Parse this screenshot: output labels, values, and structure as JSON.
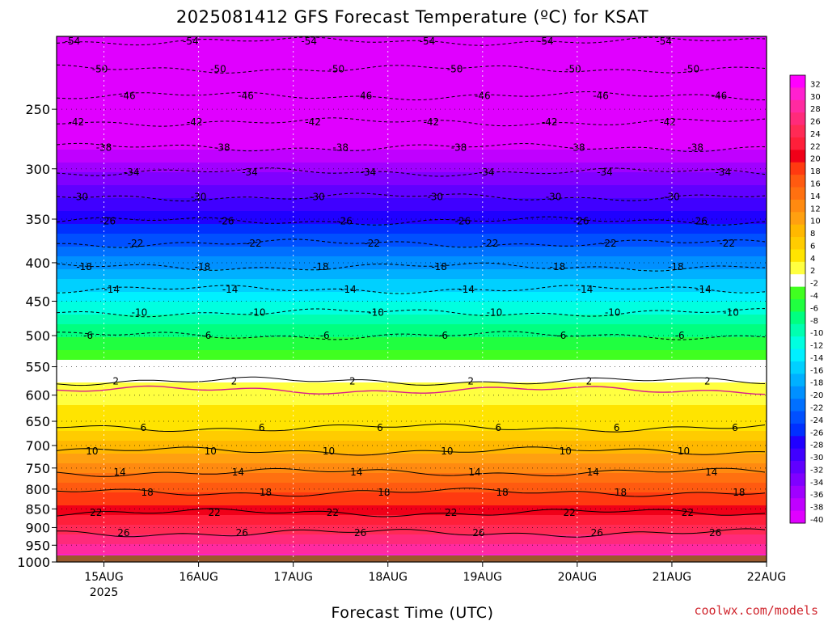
{
  "chart_data": {
    "type": "heatmap",
    "title": "2025081412 GFS Forecast Temperature (ºC) for KSAT",
    "xlabel": "Forecast Time (UTC)",
    "x_ticks": [
      {
        "label": "15AUG",
        "sub": "2025",
        "hours": 12
      },
      {
        "label": "16AUG",
        "sub": "",
        "hours": 36
      },
      {
        "label": "17AUG",
        "sub": "",
        "hours": 60
      },
      {
        "label": "18AUG",
        "sub": "",
        "hours": 84
      },
      {
        "label": "19AUG",
        "sub": "",
        "hours": 108
      },
      {
        "label": "20AUG",
        "sub": "",
        "hours": 132
      },
      {
        "label": "21AUG",
        "sub": "",
        "hours": 156
      },
      {
        "label": "22AUG",
        "sub": "",
        "hours": 180
      }
    ],
    "x_range_hours": [
      0,
      180
    ],
    "y_ticks": [
      "250",
      "300",
      "350",
      "400",
      "450",
      "500",
      "550",
      "600",
      "650",
      "700",
      "750",
      "800",
      "850",
      "900",
      "950",
      "1000"
    ],
    "y_range_hPa": [
      200,
      1000
    ],
    "y_scale": "log",
    "ground_pressure_hPa": 980,
    "colorbar": {
      "labels": [
        "32",
        "30",
        "28",
        "26",
        "24",
        "22",
        "20",
        "18",
        "16",
        "14",
        "12",
        "10",
        "8",
        "6",
        "4",
        "2",
        "-2",
        "-4",
        "-6",
        "-8",
        "-10",
        "-12",
        "-14",
        "-16",
        "-18",
        "-20",
        "-22",
        "-24",
        "-26",
        "-28",
        "-30",
        "-32",
        "-34",
        "-36",
        "-38",
        "-40"
      ],
      "colors": [
        "#ff00ff",
        "#ff20d0",
        "#ff2aa0",
        "#ff2a7a",
        "#ff2a55",
        "#ff1f3a",
        "#f00018",
        "#ff3a10",
        "#ff5a10",
        "#ff7010",
        "#ff8a10",
        "#ffa010",
        "#ffb800",
        "#ffcc00",
        "#ffe400",
        "#ffff40",
        "#ffffff",
        "#40ff20",
        "#20ff40",
        "#00ff80",
        "#00ffb0",
        "#00ffe0",
        "#00f0ff",
        "#00d0ff",
        "#00b0ff",
        "#0090ff",
        "#0070ff",
        "#0050ff",
        "#0030ff",
        "#2000ff",
        "#4000ff",
        "#6000ff",
        "#8000ff",
        "#a000ff",
        "#c000ff",
        "#e000ff"
      ]
    },
    "contours": [
      {
        "value": -54,
        "label": "-54",
        "p": 203
      },
      {
        "value": -50,
        "label": "-50",
        "p": 221
      },
      {
        "value": -46,
        "label": "-46",
        "p": 240
      },
      {
        "value": -42,
        "label": "-42",
        "p": 260
      },
      {
        "value": -38,
        "label": "-38",
        "p": 281
      },
      {
        "value": -34,
        "label": "-34",
        "p": 303
      },
      {
        "value": -30,
        "label": "-30",
        "p": 327
      },
      {
        "value": -26,
        "label": "-26",
        "p": 352
      },
      {
        "value": -22,
        "label": "-22",
        "p": 377
      },
      {
        "value": -18,
        "label": "-18",
        "p": 405
      },
      {
        "value": -14,
        "label": "-14",
        "p": 434
      },
      {
        "value": -10,
        "label": "-10",
        "p": 466
      },
      {
        "value": -6,
        "label": "-6",
        "p": 500
      },
      {
        "value": 2,
        "label": "2",
        "p": 575
      },
      {
        "value": 6,
        "label": "6",
        "p": 663
      },
      {
        "value": 10,
        "label": "10",
        "p": 712
      },
      {
        "value": 14,
        "label": "14",
        "p": 760
      },
      {
        "value": 18,
        "label": "18",
        "p": 808
      },
      {
        "value": 22,
        "label": "22",
        "p": 860
      },
      {
        "value": 26,
        "label": "26",
        "p": 915
      }
    ],
    "contour_label_hours": [
      4,
      34,
      64,
      94,
      124,
      154
    ],
    "zero_line_p": 591,
    "credit": "coolwx.com/models"
  }
}
